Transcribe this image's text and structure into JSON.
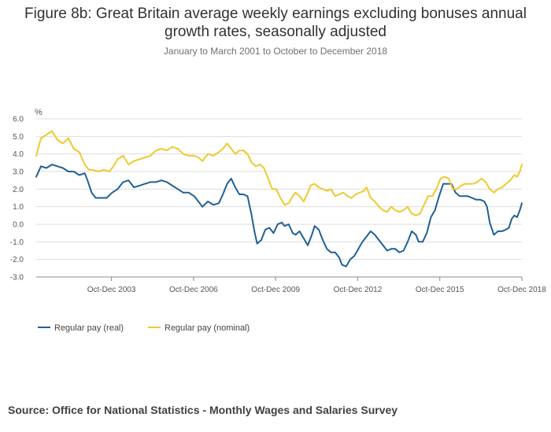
{
  "title": "Figure 8b: Great Britain average weekly earnings excluding bonuses annual growth rates, seasonally adjusted",
  "subtitle": "January to March 2001 to October to December 2018",
  "source": "Source: Office for National Statistics - Monthly Wages and Salaries Survey",
  "colors": {
    "real": "#206095",
    "nominal": "#F0C92F",
    "grid": "#dddddd",
    "axis": "#888888"
  },
  "chart_data": {
    "type": "line",
    "ylabel": "%",
    "ylim": [
      -3.0,
      6.0
    ],
    "ytick_labels": [
      "6.0",
      "5.0",
      "4.0",
      "3.0",
      "2.0",
      "1.0",
      "0.0",
      "-1.0",
      "-2.0",
      "-3.0"
    ],
    "x_start": 2001.125,
    "x_end": 2018.875,
    "xtick_labels": [
      {
        "label": "Oct-Dec 2003",
        "x": 2003.875
      },
      {
        "label": "Oct-Dec 2006",
        "x": 2006.875
      },
      {
        "label": "Oct-Dec 2009",
        "x": 2009.875
      },
      {
        "label": "Oct-Dec 2012",
        "x": 2012.875
      },
      {
        "label": "Oct-Dec 2015",
        "x": 2015.875
      },
      {
        "label": "Oct-Dec 2018",
        "x": 2018.875
      }
    ],
    "series": [
      {
        "name": "Regular pay (real)",
        "key": "real",
        "points": [
          [
            2001.125,
            2.7
          ],
          [
            2001.3,
            3.3
          ],
          [
            2001.5,
            3.2
          ],
          [
            2001.7,
            3.4
          ],
          [
            2001.9,
            3.3
          ],
          [
            2002.1,
            3.2
          ],
          [
            2002.3,
            3.0
          ],
          [
            2002.5,
            3.0
          ],
          [
            2002.7,
            2.8
          ],
          [
            2002.9,
            2.9
          ],
          [
            2003.0,
            2.5
          ],
          [
            2003.15,
            1.8
          ],
          [
            2003.3,
            1.5
          ],
          [
            2003.5,
            1.5
          ],
          [
            2003.7,
            1.5
          ],
          [
            2003.9,
            1.8
          ],
          [
            2004.1,
            2.0
          ],
          [
            2004.3,
            2.4
          ],
          [
            2004.5,
            2.5
          ],
          [
            2004.7,
            2.1
          ],
          [
            2004.9,
            2.2
          ],
          [
            2005.1,
            2.3
          ],
          [
            2005.3,
            2.4
          ],
          [
            2005.5,
            2.4
          ],
          [
            2005.7,
            2.5
          ],
          [
            2005.9,
            2.4
          ],
          [
            2006.1,
            2.2
          ],
          [
            2006.3,
            2.0
          ],
          [
            2006.5,
            1.8
          ],
          [
            2006.7,
            1.8
          ],
          [
            2006.9,
            1.6
          ],
          [
            2007.05,
            1.3
          ],
          [
            2007.2,
            1.0
          ],
          [
            2007.4,
            1.3
          ],
          [
            2007.6,
            1.1
          ],
          [
            2007.8,
            1.2
          ],
          [
            2007.95,
            1.7
          ],
          [
            2008.1,
            2.3
          ],
          [
            2008.25,
            2.6
          ],
          [
            2008.4,
            2.1
          ],
          [
            2008.55,
            1.7
          ],
          [
            2008.7,
            1.7
          ],
          [
            2008.85,
            1.6
          ],
          [
            2009.0,
            0.5
          ],
          [
            2009.1,
            -0.4
          ],
          [
            2009.2,
            -1.1
          ],
          [
            2009.35,
            -0.9
          ],
          [
            2009.5,
            -0.3
          ],
          [
            2009.65,
            -0.2
          ],
          [
            2009.8,
            -0.5
          ],
          [
            2009.95,
            0.0
          ],
          [
            2010.1,
            0.1
          ],
          [
            2010.2,
            -0.1
          ],
          [
            2010.35,
            0.0
          ],
          [
            2010.5,
            -0.5
          ],
          [
            2010.6,
            -0.6
          ],
          [
            2010.75,
            -0.4
          ],
          [
            2010.9,
            -0.8
          ],
          [
            2011.05,
            -1.2
          ],
          [
            2011.2,
            -0.6
          ],
          [
            2011.3,
            -0.1
          ],
          [
            2011.45,
            -0.3
          ],
          [
            2011.6,
            -0.9
          ],
          [
            2011.75,
            -1.4
          ],
          [
            2011.9,
            -1.6
          ],
          [
            2012.05,
            -1.6
          ],
          [
            2012.2,
            -1.9
          ],
          [
            2012.3,
            -2.3
          ],
          [
            2012.45,
            -2.4
          ],
          [
            2012.6,
            -2.0
          ],
          [
            2012.75,
            -1.8
          ],
          [
            2012.9,
            -1.4
          ],
          [
            2013.05,
            -1.0
          ],
          [
            2013.2,
            -0.7
          ],
          [
            2013.35,
            -0.4
          ],
          [
            2013.5,
            -0.6
          ],
          [
            2013.65,
            -0.9
          ],
          [
            2013.8,
            -1.2
          ],
          [
            2013.95,
            -1.5
          ],
          [
            2014.1,
            -1.4
          ],
          [
            2014.25,
            -1.4
          ],
          [
            2014.4,
            -1.6
          ],
          [
            2014.55,
            -1.5
          ],
          [
            2014.7,
            -1.0
          ],
          [
            2014.85,
            -0.4
          ],
          [
            2015.0,
            -0.6
          ],
          [
            2015.1,
            -1.0
          ],
          [
            2015.25,
            -1.0
          ],
          [
            2015.4,
            -0.5
          ],
          [
            2015.55,
            0.4
          ],
          [
            2015.7,
            0.8
          ],
          [
            2015.85,
            1.6
          ],
          [
            2016.0,
            2.3
          ],
          [
            2016.15,
            2.3
          ],
          [
            2016.3,
            2.3
          ],
          [
            2016.45,
            1.8
          ],
          [
            2016.6,
            1.6
          ],
          [
            2016.75,
            1.6
          ],
          [
            2016.9,
            1.6
          ],
          [
            2017.05,
            1.5
          ],
          [
            2017.2,
            1.4
          ],
          [
            2017.35,
            1.4
          ],
          [
            2017.5,
            1.3
          ],
          [
            2017.6,
            1.0
          ],
          [
            2017.7,
            0.1
          ],
          [
            2017.85,
            -0.6
          ],
          [
            2018.0,
            -0.4
          ],
          [
            2018.15,
            -0.4
          ],
          [
            2018.3,
            -0.3
          ],
          [
            2018.4,
            -0.2
          ],
          [
            2018.5,
            0.3
          ],
          [
            2018.6,
            0.5
          ],
          [
            2018.7,
            0.4
          ],
          [
            2018.8,
            0.8
          ],
          [
            2018.875,
            1.2
          ]
        ]
      },
      {
        "name": "Regular pay (nominal)",
        "key": "nominal",
        "points": [
          [
            2001.125,
            3.9
          ],
          [
            2001.3,
            4.9
          ],
          [
            2001.5,
            5.1
          ],
          [
            2001.7,
            5.3
          ],
          [
            2001.9,
            4.8
          ],
          [
            2002.1,
            4.6
          ],
          [
            2002.3,
            4.9
          ],
          [
            2002.5,
            4.3
          ],
          [
            2002.7,
            4.1
          ],
          [
            2002.9,
            3.4
          ],
          [
            2003.05,
            3.1
          ],
          [
            2003.2,
            3.1
          ],
          [
            2003.4,
            3.0
          ],
          [
            2003.6,
            3.1
          ],
          [
            2003.8,
            3.0
          ],
          [
            2003.95,
            3.3
          ],
          [
            2004.1,
            3.7
          ],
          [
            2004.3,
            3.9
          ],
          [
            2004.5,
            3.4
          ],
          [
            2004.7,
            3.6
          ],
          [
            2004.9,
            3.7
          ],
          [
            2005.1,
            3.8
          ],
          [
            2005.3,
            3.9
          ],
          [
            2005.5,
            4.2
          ],
          [
            2005.7,
            4.3
          ],
          [
            2005.9,
            4.2
          ],
          [
            2006.1,
            4.4
          ],
          [
            2006.3,
            4.3
          ],
          [
            2006.5,
            4.0
          ],
          [
            2006.7,
            3.9
          ],
          [
            2006.9,
            3.9
          ],
          [
            2007.05,
            3.8
          ],
          [
            2007.2,
            3.6
          ],
          [
            2007.4,
            4.0
          ],
          [
            2007.6,
            3.9
          ],
          [
            2007.8,
            4.1
          ],
          [
            2007.95,
            4.3
          ],
          [
            2008.1,
            4.6
          ],
          [
            2008.25,
            4.3
          ],
          [
            2008.4,
            4.0
          ],
          [
            2008.55,
            4.2
          ],
          [
            2008.7,
            4.2
          ],
          [
            2008.85,
            4.0
          ],
          [
            2009.0,
            3.5
          ],
          [
            2009.15,
            3.3
          ],
          [
            2009.3,
            3.4
          ],
          [
            2009.45,
            3.2
          ],
          [
            2009.6,
            2.6
          ],
          [
            2009.75,
            2.0
          ],
          [
            2009.9,
            2.0
          ],
          [
            2010.05,
            1.5
          ],
          [
            2010.2,
            1.1
          ],
          [
            2010.35,
            1.2
          ],
          [
            2010.5,
            1.6
          ],
          [
            2010.6,
            1.8
          ],
          [
            2010.75,
            1.6
          ],
          [
            2010.9,
            1.3
          ],
          [
            2011.05,
            1.8
          ],
          [
            2011.15,
            2.2
          ],
          [
            2011.3,
            2.3
          ],
          [
            2011.45,
            2.1
          ],
          [
            2011.6,
            2.0
          ],
          [
            2011.75,
            1.9
          ],
          [
            2011.9,
            2.0
          ],
          [
            2012.05,
            1.6
          ],
          [
            2012.2,
            1.7
          ],
          [
            2012.35,
            1.8
          ],
          [
            2012.5,
            1.6
          ],
          [
            2012.65,
            1.5
          ],
          [
            2012.8,
            1.7
          ],
          [
            2012.95,
            1.8
          ],
          [
            2013.1,
            1.9
          ],
          [
            2013.2,
            2.1
          ],
          [
            2013.35,
            1.5
          ],
          [
            2013.5,
            1.3
          ],
          [
            2013.65,
            1.0
          ],
          [
            2013.8,
            0.8
          ],
          [
            2013.95,
            0.7
          ],
          [
            2014.1,
            1.0
          ],
          [
            2014.25,
            0.8
          ],
          [
            2014.4,
            0.7
          ],
          [
            2014.55,
            0.8
          ],
          [
            2014.7,
            1.0
          ],
          [
            2014.85,
            0.6
          ],
          [
            2015.0,
            0.5
          ],
          [
            2015.15,
            0.6
          ],
          [
            2015.3,
            1.1
          ],
          [
            2015.45,
            1.6
          ],
          [
            2015.6,
            1.6
          ],
          [
            2015.75,
            2.0
          ],
          [
            2015.9,
            2.6
          ],
          [
            2016.05,
            2.7
          ],
          [
            2016.2,
            2.6
          ],
          [
            2016.35,
            2.0
          ],
          [
            2016.5,
            2.0
          ],
          [
            2016.65,
            2.2
          ],
          [
            2016.8,
            2.3
          ],
          [
            2016.95,
            2.3
          ],
          [
            2017.1,
            2.3
          ],
          [
            2017.25,
            2.4
          ],
          [
            2017.4,
            2.6
          ],
          [
            2017.55,
            2.4
          ],
          [
            2017.7,
            2.0
          ],
          [
            2017.85,
            1.8
          ],
          [
            2018.0,
            2.0
          ],
          [
            2018.15,
            2.1
          ],
          [
            2018.3,
            2.3
          ],
          [
            2018.45,
            2.5
          ],
          [
            2018.6,
            2.8
          ],
          [
            2018.7,
            2.7
          ],
          [
            2018.8,
            3.0
          ],
          [
            2018.875,
            3.4
          ]
        ]
      }
    ],
    "legend": [
      "Regular pay (real)",
      "Regular pay (nominal)"
    ],
    "grid": true,
    "legend_position": "bottom-left"
  }
}
